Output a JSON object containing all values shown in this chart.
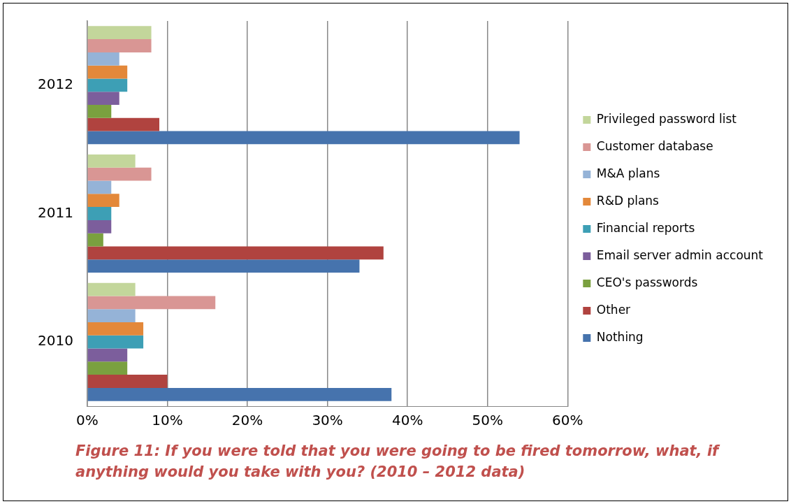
{
  "chart_data": {
    "type": "bar",
    "orientation": "horizontal",
    "categories": [
      "2012",
      "2011",
      "2010"
    ],
    "series": [
      {
        "name": "Privileged password list",
        "color": "#c3d69b",
        "values": [
          8,
          6,
          6
        ]
      },
      {
        "name": "Customer database",
        "color": "#d99694",
        "values": [
          8,
          8,
          16
        ]
      },
      {
        "name": "M&A plans",
        "color": "#95b3d7",
        "values": [
          4,
          3,
          6
        ]
      },
      {
        "name": "R&D plans",
        "color": "#e3883a",
        "values": [
          5,
          4,
          7
        ]
      },
      {
        "name": "Financial reports",
        "color": "#3d9fb5",
        "values": [
          5,
          3,
          7
        ]
      },
      {
        "name": "Email server admin account",
        "color": "#7c5e9c",
        "values": [
          4,
          3,
          5
        ]
      },
      {
        "name": "CEO's passwords",
        "color": "#7aa03f",
        "values": [
          3,
          2,
          5
        ]
      },
      {
        "name": "Other",
        "color": "#b0433f",
        "values": [
          9,
          37,
          10
        ]
      },
      {
        "name": "Nothing",
        "color": "#4673ad",
        "values": [
          54,
          34,
          38
        ]
      }
    ],
    "xlim": [
      0,
      60
    ],
    "xticks": [
      {
        "value": 0,
        "label": "0%"
      },
      {
        "value": 10,
        "label": "10%"
      },
      {
        "value": 20,
        "label": "20%"
      },
      {
        "value": 30,
        "label": "30%"
      },
      {
        "value": 40,
        "label": "40%"
      },
      {
        "value": 50,
        "label": "50%"
      },
      {
        "value": 60,
        "label": "60%"
      }
    ],
    "grid": "x",
    "legend": "right",
    "annotations": [
      "Figure 11: If you were told that you were going to be fired tomorrow, what, if anything would you take with you? (2010 – 2012 data)"
    ]
  }
}
